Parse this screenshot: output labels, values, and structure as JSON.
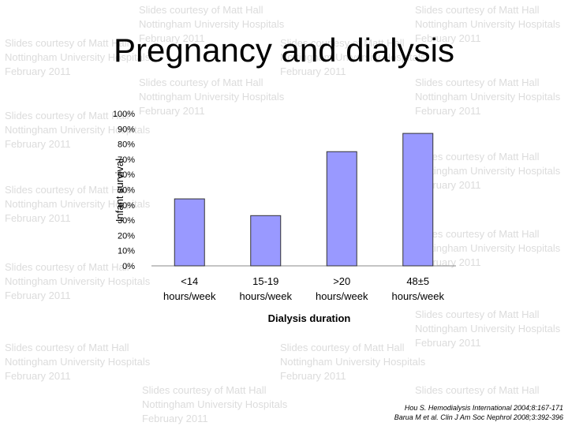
{
  "slide": {
    "title": "Pregnancy and dialysis",
    "watermark": {
      "line1": "Slides courtesy of Matt Hall",
      "line2": "Nottingham University Hospitals",
      "line3": "February 2011"
    },
    "references": [
      "Hou S. Hemodialysis International 2004;8:167-171",
      "Barua M et al. Clin J Am Soc Nephrol 2008;3:392-396"
    ]
  },
  "chart_data": {
    "type": "bar",
    "title": "",
    "xlabel": "Dialysis duration",
    "ylabel": "Infant survival",
    "categories": [
      [
        "<14",
        "hours/week"
      ],
      [
        "15-19",
        "hours/week"
      ],
      [
        ">20",
        "hours/week"
      ],
      [
        "48±5",
        "hours/week"
      ]
    ],
    "values": [
      0.44,
      0.33,
      0.75,
      0.87
    ],
    "ylim": [
      0,
      1
    ],
    "yticks": [
      "0%",
      "10%",
      "20%",
      "30%",
      "40%",
      "50%",
      "60%",
      "70%",
      "80%",
      "90%",
      "100%"
    ],
    "bar_color": "#9999ff",
    "grid": false
  }
}
